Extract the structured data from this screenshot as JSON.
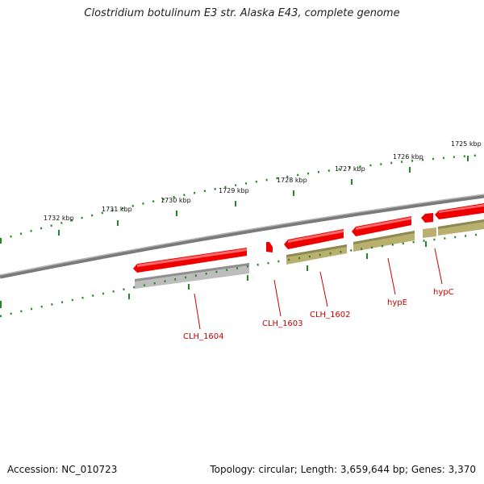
{
  "title": "Clostridium botulinum E3 str. Alaska E43, complete genome",
  "footer": {
    "accession": "Accession: NC_010723",
    "topology": "Topology: circular; Length: 3,659,644 bp; Genes: 3,370"
  },
  "scale_labels": [
    "1732 kbp",
    "1731 kbp",
    "1730 kbp",
    "1729 kbp",
    "1728 kbp",
    "1727 kbp",
    "1726 kbp",
    "1725 kbp"
  ],
  "gene_labels": [
    "CLH_1604",
    "CLH_1603",
    "CLH_1602",
    "hypE",
    "hypC"
  ],
  "colors": {
    "gene_fill": "#ee0000",
    "cds_gray": "#bdbdbd",
    "cds_olive": "#b9b070",
    "backbone": "#7a7a7a",
    "ticks": "#228822",
    "label_text": "#cc0000"
  }
}
